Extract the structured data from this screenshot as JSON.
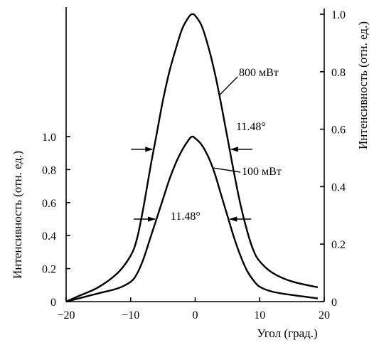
{
  "chart_data": {
    "type": "line",
    "xlabel": "Угол (град.)",
    "x_ticks": [
      -20,
      -10,
      0,
      10,
      20
    ],
    "xlim": [
      -20,
      20
    ],
    "left_axis": {
      "label": "Интенсивность (отн. ед.)",
      "ylim": [
        0,
        1.0
      ],
      "ticks": [
        0,
        0.2,
        0.4,
        0.6,
        0.8,
        1.0
      ],
      "tick_labels": [
        "0",
        "0.2",
        "0.4",
        "0.6",
        "0.8",
        "1.0"
      ]
    },
    "right_axis": {
      "label": "Интенсивность (отн. ед.)",
      "ylim": [
        0,
        1.0
      ],
      "ticks": [
        0,
        0.2,
        0.4,
        0.6,
        0.8,
        1.0
      ],
      "tick_labels": [
        "0",
        "0.2",
        "0.4",
        "0.6",
        "0.8",
        "1.0"
      ]
    },
    "series": [
      {
        "name": "800 мВт",
        "axis": "right",
        "x": [
          -20,
          -18,
          -15,
          -12,
          -10,
          -9,
          -8,
          -7,
          -6,
          -5,
          -4,
          -3,
          -2,
          -1,
          -0.5,
          0,
          1,
          2,
          3,
          4,
          5,
          6,
          7,
          8,
          9,
          10,
          12,
          15,
          19
        ],
        "y": [
          0,
          0.02,
          0.05,
          0.1,
          0.16,
          0.22,
          0.33,
          0.46,
          0.58,
          0.7,
          0.8,
          0.88,
          0.95,
          0.99,
          1.0,
          0.995,
          0.96,
          0.89,
          0.8,
          0.69,
          0.57,
          0.45,
          0.34,
          0.25,
          0.18,
          0.14,
          0.1,
          0.07,
          0.05
        ]
      },
      {
        "name": "100 мВт",
        "axis": "left",
        "x": [
          -20,
          -18,
          -15,
          -12,
          -10,
          -9,
          -8,
          -7,
          -6,
          -5,
          -4,
          -3,
          -2,
          -1,
          -0.5,
          0,
          1,
          2,
          3,
          4,
          5,
          6,
          7,
          8,
          9,
          10,
          12,
          15,
          19
        ],
        "y": [
          0,
          0.02,
          0.05,
          0.08,
          0.12,
          0.17,
          0.26,
          0.38,
          0.5,
          0.62,
          0.74,
          0.84,
          0.92,
          0.98,
          1.0,
          0.99,
          0.95,
          0.88,
          0.78,
          0.65,
          0.52,
          0.39,
          0.28,
          0.19,
          0.13,
          0.09,
          0.06,
          0.04,
          0.02
        ]
      }
    ],
    "annotations": [
      {
        "text": "800 мВт",
        "series": "800 мВт"
      },
      {
        "text": "100 мВт",
        "series": "100 мВт"
      },
      {
        "text": "11.48°",
        "series": "800 мВт",
        "kind": "fwhm",
        "y_level": 0.53
      },
      {
        "text": "11.48°",
        "series": "100 мВт",
        "kind": "fwhm",
        "y_level": 0.5
      }
    ],
    "grid": false
  }
}
